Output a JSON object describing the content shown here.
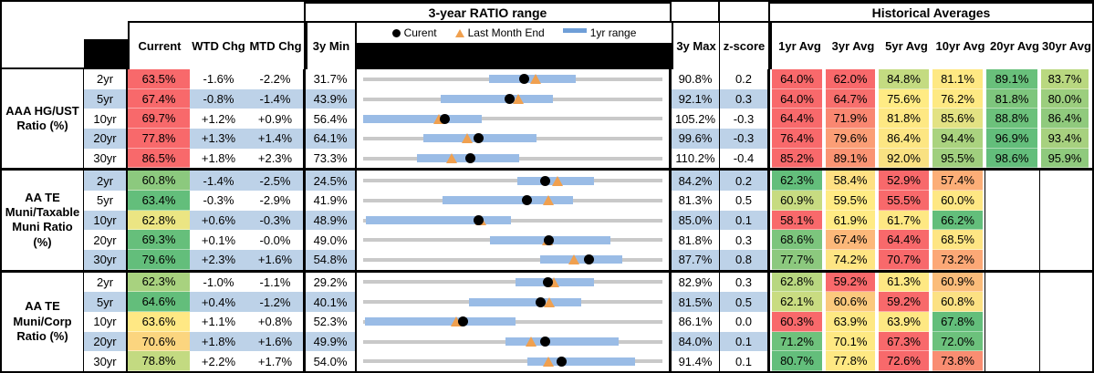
{
  "header": {
    "range_title": "3-year RATIO range",
    "hist_title": "Historical Averages",
    "current": "Current",
    "wtd": "WTD Chg",
    "mtd": "MTD Chg",
    "min": "3y Min",
    "max": "3y Max",
    "z": "z-score",
    "avg_cols": [
      "1yr Avg",
      "3yr Avg",
      "5yr Avg",
      "10yr Avg",
      "20yr Avg",
      "30yr Avg"
    ]
  },
  "legend": {
    "current": "Curent",
    "last_month": "Last Month End",
    "range": "1yr range"
  },
  "colors": {
    "row_alt": "#BDD2E8",
    "bar": "#9ABCE6",
    "track": "#C9C9C9",
    "triangle": "#F0A04F",
    "dot": "#000000",
    "legend_bar": "#6F9FD8",
    "scale_low": "#F8696B",
    "scale_mid": "#FFEB84",
    "scale_high": "#63BE7B"
  },
  "groups": [
    {
      "label_lines": [
        "AAA HG/UST",
        "Ratio (%)"
      ],
      "rows": [
        {
          "tenor": "2yr",
          "current": "63.5%",
          "current_bg": "#F8696B",
          "wtd": "-1.6%",
          "mtd": "-2.2%",
          "min": "31.7%",
          "max": "90.8%",
          "z": "0.2",
          "bar": [
            42,
            71
          ],
          "dot": 53.8,
          "tri": 57.5,
          "avgs": [
            {
              "v": "64.0%",
              "bg": "#F8696B"
            },
            {
              "v": "62.0%",
              "bg": "#F8696B"
            },
            {
              "v": "84.8%",
              "bg": "#C4DB81"
            },
            {
              "v": "81.1%",
              "bg": "#FEE883"
            },
            {
              "v": "89.1%",
              "bg": "#69C07B"
            },
            {
              "v": "83.7%",
              "bg": "#B9D880"
            }
          ]
        },
        {
          "tenor": "5yr",
          "current": "67.4%",
          "current_bg": "#F8696B",
          "wtd": "-0.8%",
          "mtd": "-1.4%",
          "min": "43.9%",
          "max": "92.1%",
          "z": "0.3",
          "bar": [
            26,
            63.5
          ],
          "dot": 48.8,
          "tri": 51.7,
          "avgs": [
            {
              "v": "64.0%",
              "bg": "#F8696B"
            },
            {
              "v": "64.7%",
              "bg": "#F86F6D"
            },
            {
              "v": "75.6%",
              "bg": "#FFEB84"
            },
            {
              "v": "76.2%",
              "bg": "#FEE983"
            },
            {
              "v": "81.8%",
              "bg": "#7EC67D"
            },
            {
              "v": "80.0%",
              "bg": "#9CCE7E"
            }
          ]
        },
        {
          "tenor": "10yr",
          "current": "69.7%",
          "current_bg": "#F8696B",
          "wtd": "+1.2%",
          "mtd": "+0.9%",
          "min": "56.4%",
          "max": "105.2%",
          "z": "-0.3",
          "bar": [
            0,
            39.5
          ],
          "dot": 27.3,
          "tri": 25.4,
          "avgs": [
            {
              "v": "64.4%",
              "bg": "#F8696B"
            },
            {
              "v": "71.9%",
              "bg": "#F98771"
            },
            {
              "v": "81.8%",
              "bg": "#FEE883"
            },
            {
              "v": "85.6%",
              "bg": "#E3E283"
            },
            {
              "v": "88.8%",
              "bg": "#6CC17B"
            },
            {
              "v": "86.4%",
              "bg": "#90CA7D"
            }
          ]
        },
        {
          "tenor": "20yr",
          "current": "77.8%",
          "current_bg": "#F8696B",
          "wtd": "+1.3%",
          "mtd": "+1.4%",
          "min": "64.1%",
          "max": "99.6%",
          "z": "-0.3",
          "bar": [
            20,
            58
          ],
          "dot": 38.6,
          "tri": 34.7,
          "avgs": [
            {
              "v": "76.4%",
              "bg": "#F8696B"
            },
            {
              "v": "79.6%",
              "bg": "#FB9E76"
            },
            {
              "v": "86.4%",
              "bg": "#FDE683"
            },
            {
              "v": "94.4%",
              "bg": "#AAD37F"
            },
            {
              "v": "96.9%",
              "bg": "#63BE7B"
            },
            {
              "v": "93.4%",
              "bg": "#A7D17F"
            }
          ]
        },
        {
          "tenor": "30yr",
          "current": "86.5%",
          "current_bg": "#F8696B",
          "wtd": "+1.8%",
          "mtd": "+2.3%",
          "min": "73.3%",
          "max": "110.2%",
          "z": "-0.4",
          "bar": [
            18,
            52
          ],
          "dot": 35.8,
          "tri": 29.6,
          "avgs": [
            {
              "v": "85.2%",
              "bg": "#F8696B"
            },
            {
              "v": "89.1%",
              "bg": "#FA9473"
            },
            {
              "v": "92.0%",
              "bg": "#F9E182"
            },
            {
              "v": "95.5%",
              "bg": "#A0CF7E"
            },
            {
              "v": "98.6%",
              "bg": "#63BE7B"
            },
            {
              "v": "95.9%",
              "bg": "#8FCA7D"
            }
          ]
        }
      ]
    },
    {
      "label_lines": [
        "AA TE",
        "Muni/Taxable",
        "Muni Ratio",
        "(%)"
      ],
      "rows": [
        {
          "tenor": "2yr",
          "current": "60.8%",
          "current_bg": "#8CC97E",
          "wtd": "-1.4%",
          "mtd": "-2.5%",
          "min": "24.5%",
          "max": "84.2%",
          "z": "0.2",
          "bar": [
            51.5,
            77
          ],
          "dot": 60.8,
          "tri": 65.0,
          "avgs": [
            {
              "v": "62.3%",
              "bg": "#63BE7B"
            },
            {
              "v": "58.4%",
              "bg": "#FEE083"
            },
            {
              "v": "52.9%",
              "bg": "#F8696B"
            },
            {
              "v": "57.4%",
              "bg": "#FCAE77"
            },
            null,
            null
          ]
        },
        {
          "tenor": "5yr",
          "current": "63.4%",
          "current_bg": "#63BE7B",
          "wtd": "-0.3%",
          "mtd": "-2.9%",
          "min": "41.9%",
          "max": "81.3%",
          "z": "0.5",
          "bar": [
            26.5,
            70
          ],
          "dot": 54.6,
          "tri": 61.9,
          "avgs": [
            {
              "v": "60.9%",
              "bg": "#C7DB81"
            },
            {
              "v": "59.5%",
              "bg": "#FFEB84"
            },
            {
              "v": "55.5%",
              "bg": "#F8696B"
            },
            {
              "v": "60.0%",
              "bg": "#FEE783"
            },
            null,
            null
          ]
        },
        {
          "tenor": "10yr",
          "current": "62.8%",
          "current_bg": "#EBE583",
          "wtd": "+0.6%",
          "mtd": "-0.3%",
          "min": "48.9%",
          "max": "85.0%",
          "z": "0.1",
          "bar": [
            1,
            49.5
          ],
          "dot": 38.5,
          "tri": 39.3,
          "avgs": [
            {
              "v": "58.1%",
              "bg": "#F8696B"
            },
            {
              "v": "61.9%",
              "bg": "#FFEB84"
            },
            {
              "v": "61.7%",
              "bg": "#FEE883"
            },
            {
              "v": "66.2%",
              "bg": "#63BE7B"
            },
            null,
            null
          ]
        },
        {
          "tenor": "20yr",
          "current": "69.3%",
          "current_bg": "#66BF7B",
          "wtd": "+0.1%",
          "mtd": "-0.0%",
          "min": "49.0%",
          "max": "81.8%",
          "z": "0.3",
          "bar": [
            42.5,
            82.5
          ],
          "dot": 61.9,
          "tri": 61.5,
          "avgs": [
            {
              "v": "68.6%",
              "bg": "#7CC57D"
            },
            {
              "v": "67.4%",
              "bg": "#FCB87A"
            },
            {
              "v": "64.4%",
              "bg": "#F8696B"
            },
            {
              "v": "68.5%",
              "bg": "#FEE583"
            },
            null,
            null
          ]
        },
        {
          "tenor": "30yr",
          "current": "79.6%",
          "current_bg": "#63BE7B",
          "wtd": "+2.3%",
          "mtd": "+1.6%",
          "min": "54.8%",
          "max": "87.7%",
          "z": "0.8",
          "bar": [
            59,
            86.5
          ],
          "dot": 75.4,
          "tri": 70.5,
          "avgs": [
            {
              "v": "77.7%",
              "bg": "#8CC97E"
            },
            {
              "v": "74.2%",
              "bg": "#FEE583"
            },
            {
              "v": "70.7%",
              "bg": "#F8696B"
            },
            {
              "v": "73.2%",
              "bg": "#FCA876"
            },
            null,
            null
          ]
        }
      ]
    },
    {
      "label_lines": [
        "AA TE",
        "Muni/Corp",
        "Ratio (%)"
      ],
      "rows": [
        {
          "tenor": "2yr",
          "current": "62.3%",
          "current_bg": "#A8D27F",
          "wtd": "-1.0%",
          "mtd": "-1.1%",
          "min": "29.2%",
          "max": "82.9%",
          "z": "0.3",
          "bar": [
            51,
            77
          ],
          "dot": 61.6,
          "tri": 63.7,
          "avgs": [
            {
              "v": "62.8%",
              "bg": "#B8D780"
            },
            {
              "v": "59.2%",
              "bg": "#F8696B"
            },
            {
              "v": "61.3%",
              "bg": "#FEE883"
            },
            {
              "v": "60.9%",
              "bg": "#FBBC7A"
            },
            null,
            null
          ]
        },
        {
          "tenor": "5yr",
          "current": "64.6%",
          "current_bg": "#63BE7B",
          "wtd": "+0.4%",
          "mtd": "-1.2%",
          "min": "40.1%",
          "max": "81.5%",
          "z": "0.5",
          "bar": [
            35.5,
            73
          ],
          "dot": 59.2,
          "tri": 62.1,
          "avgs": [
            {
              "v": "62.1%",
              "bg": "#C9DC81"
            },
            {
              "v": "60.6%",
              "bg": "#FBC97D"
            },
            {
              "v": "59.2%",
              "bg": "#F8696B"
            },
            {
              "v": "60.8%",
              "bg": "#FCE183"
            },
            null,
            null
          ]
        },
        {
          "tenor": "10yr",
          "current": "63.6%",
          "current_bg": "#FFE884",
          "wtd": "+1.1%",
          "mtd": "+0.8%",
          "min": "52.3%",
          "max": "86.1%",
          "z": "0.0",
          "bar": [
            0.5,
            51
          ],
          "dot": 33.4,
          "tri": 31.1,
          "avgs": [
            {
              "v": "60.3%",
              "bg": "#F8696B"
            },
            {
              "v": "63.9%",
              "bg": "#FEE883"
            },
            {
              "v": "63.9%",
              "bg": "#FEE883"
            },
            {
              "v": "67.8%",
              "bg": "#63BE7B"
            },
            null,
            null
          ]
        },
        {
          "tenor": "20yr",
          "current": "70.6%",
          "current_bg": "#FBD57F",
          "wtd": "+1.8%",
          "mtd": "+1.6%",
          "min": "49.9%",
          "max": "84.0%",
          "z": "0.1",
          "bar": [
            47.5,
            85.5
          ],
          "dot": 60.7,
          "tri": 56.0,
          "avgs": [
            {
              "v": "71.2%",
              "bg": "#6EC27C"
            },
            {
              "v": "70.1%",
              "bg": "#FEE983"
            },
            {
              "v": "67.3%",
              "bg": "#F8696B"
            },
            {
              "v": "72.0%",
              "bg": "#6CC17C"
            },
            null,
            null
          ]
        },
        {
          "tenor": "30yr",
          "current": "78.8%",
          "current_bg": "#C3DA81",
          "wtd": "+2.2%",
          "mtd": "+1.7%",
          "min": "54.0%",
          "max": "91.4%",
          "z": "0.1",
          "bar": [
            55,
            91
          ],
          "dot": 66.3,
          "tri": 61.8,
          "avgs": [
            {
              "v": "80.7%",
              "bg": "#63BE7B"
            },
            {
              "v": "77.8%",
              "bg": "#FEE883"
            },
            {
              "v": "72.6%",
              "bg": "#F8696B"
            },
            {
              "v": "73.8%",
              "bg": "#F98D72"
            },
            null,
            null
          ]
        }
      ]
    }
  ]
}
